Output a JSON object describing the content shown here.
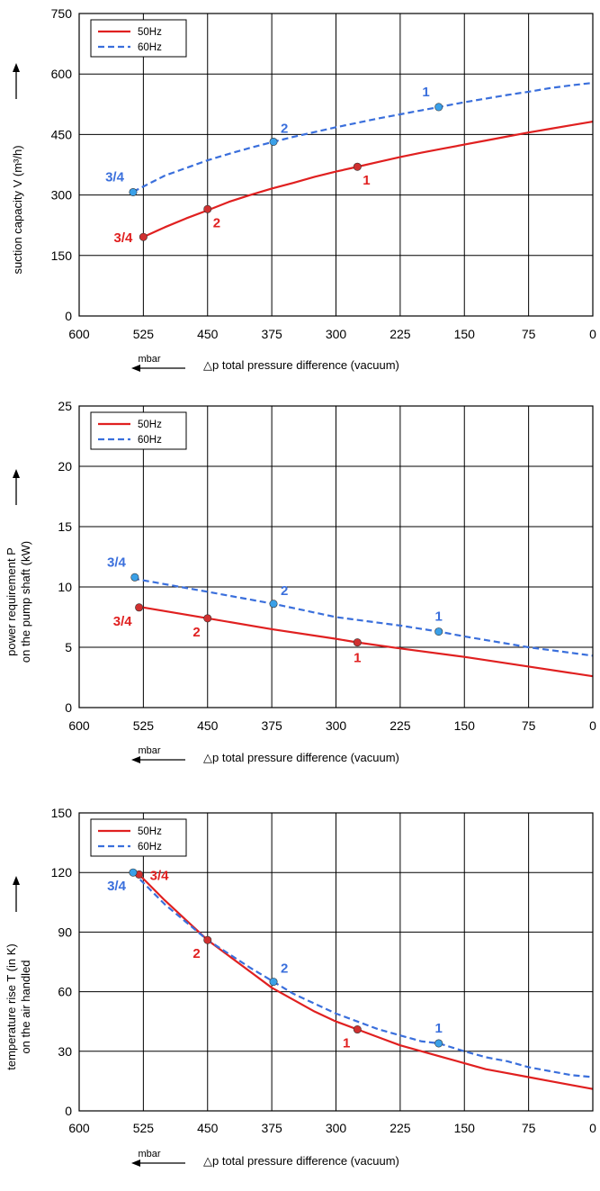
{
  "chart_data": [
    {
      "type": "line",
      "ylabel": "suction capacity V (m³/h)",
      "xlabel": "△p total pressure difference (vacuum)",
      "x_unit": "mbar",
      "xlim": [
        600,
        0
      ],
      "ylim": [
        0,
        750
      ],
      "x_ticks": [
        600,
        525,
        450,
        375,
        300,
        225,
        150,
        75,
        0
      ],
      "y_ticks": [
        0,
        150,
        300,
        450,
        600,
        750
      ],
      "grid": true,
      "legend_position": "top-left",
      "series": [
        {
          "name": "50Hz",
          "color": "#e02020",
          "dash": false,
          "x": [
            525,
            500,
            475,
            450,
            425,
            400,
            375,
            350,
            325,
            300,
            275,
            250,
            225,
            200,
            175,
            150,
            125,
            100,
            75,
            50,
            25,
            0
          ],
          "y": [
            196,
            220,
            242,
            262,
            283,
            300,
            316,
            330,
            345,
            358,
            370,
            382,
            394,
            405,
            415,
            425,
            435,
            445,
            455,
            464,
            473,
            482
          ]
        },
        {
          "name": "60Hz",
          "color": "#3a6fdc",
          "dash": true,
          "x": [
            537,
            500,
            475,
            450,
            425,
            400,
            373,
            350,
            325,
            300,
            275,
            250,
            225,
            200,
            180,
            150,
            125,
            100,
            75,
            50,
            25,
            0
          ],
          "y": [
            308,
            348,
            367,
            386,
            402,
            417,
            432,
            444,
            456,
            468,
            479,
            490,
            500,
            510,
            518,
            530,
            539,
            548,
            556,
            565,
            572,
            578
          ]
        }
      ],
      "points": [
        {
          "series": "50Hz",
          "label": "3/4",
          "x": 525,
          "y": 196,
          "label_pos": "left"
        },
        {
          "series": "50Hz",
          "label": "2",
          "x": 450,
          "y": 265,
          "label_pos": "below-right"
        },
        {
          "series": "50Hz",
          "label": "1",
          "x": 275,
          "y": 370,
          "label_pos": "below-right"
        },
        {
          "series": "60Hz",
          "label": "3/4",
          "x": 537,
          "y": 307,
          "label_pos": "above-left"
        },
        {
          "series": "60Hz",
          "label": "2",
          "x": 373,
          "y": 432,
          "label_pos": "above-right"
        },
        {
          "series": "60Hz",
          "label": "1",
          "x": 180,
          "y": 518,
          "label_pos": "above-left"
        }
      ]
    },
    {
      "type": "line",
      "ylabel": "power requirement P",
      "ylabel2": "on the pump shaft (kW)",
      "xlabel": "△p total pressure difference (vacuum)",
      "x_unit": "mbar",
      "xlim": [
        600,
        0
      ],
      "ylim": [
        0,
        25
      ],
      "x_ticks": [
        600,
        525,
        450,
        375,
        300,
        225,
        150,
        75,
        0
      ],
      "y_ticks": [
        0,
        5,
        10,
        15,
        20,
        25
      ],
      "grid": true,
      "legend_position": "top-left",
      "series": [
        {
          "name": "50Hz",
          "color": "#e02020",
          "dash": false,
          "x": [
            525,
            450,
            375,
            300,
            275,
            225,
            150,
            75,
            0
          ],
          "y": [
            8.3,
            7.4,
            6.5,
            5.7,
            5.4,
            4.9,
            4.2,
            3.4,
            2.6
          ]
        },
        {
          "name": "60Hz",
          "color": "#3a6fdc",
          "dash": true,
          "x": [
            537,
            450,
            373,
            300,
            225,
            180,
            150,
            75,
            0
          ],
          "y": [
            10.7,
            9.6,
            8.6,
            7.5,
            6.8,
            6.3,
            5.9,
            5.0,
            4.3
          ]
        }
      ],
      "points": [
        {
          "series": "50Hz",
          "label": "3/4",
          "x": 530,
          "y": 8.3,
          "label_pos": "below-left"
        },
        {
          "series": "50Hz",
          "label": "2",
          "x": 450,
          "y": 7.4,
          "label_pos": "below-left"
        },
        {
          "series": "50Hz",
          "label": "1",
          "x": 275,
          "y": 5.4,
          "label_pos": "below"
        },
        {
          "series": "60Hz",
          "label": "3/4",
          "x": 535,
          "y": 10.8,
          "label_pos": "above-left"
        },
        {
          "series": "60Hz",
          "label": "2",
          "x": 373,
          "y": 8.6,
          "label_pos": "above-right"
        },
        {
          "series": "60Hz",
          "label": "1",
          "x": 180,
          "y": 6.3,
          "label_pos": "above"
        }
      ]
    },
    {
      "type": "line",
      "ylabel": "temperature rise T (in K)",
      "ylabel2": "on the air handled",
      "xlabel": "△p total pressure difference (vacuum)",
      "x_unit": "mbar",
      "xlim": [
        600,
        0
      ],
      "ylim": [
        0,
        150
      ],
      "x_ticks": [
        600,
        525,
        450,
        375,
        300,
        225,
        150,
        75,
        0
      ],
      "y_ticks": [
        0,
        30,
        60,
        90,
        120,
        150
      ],
      "grid": true,
      "legend_position": "top-left",
      "series": [
        {
          "name": "50Hz",
          "color": "#e02020",
          "dash": false,
          "x": [
            530,
            500,
            475,
            450,
            425,
            400,
            375,
            350,
            325,
            300,
            275,
            250,
            225,
            200,
            175,
            150,
            125,
            100,
            75,
            50,
            25,
            0
          ],
          "y": [
            119,
            106,
            96,
            86,
            78,
            70,
            62,
            56,
            50,
            45,
            41,
            37,
            33,
            30,
            27,
            24,
            21,
            19,
            17,
            15,
            13,
            11
          ]
        },
        {
          "name": "60Hz",
          "color": "#3a6fdc",
          "dash": true,
          "x": [
            537,
            500,
            475,
            450,
            425,
            400,
            373,
            350,
            325,
            300,
            275,
            250,
            225,
            200,
            180,
            150,
            125,
            100,
            75,
            50,
            25,
            0
          ],
          "y": [
            120,
            104,
            95,
            86,
            79,
            72,
            65,
            59,
            54,
            49,
            45,
            41,
            38,
            35,
            34,
            30,
            27,
            25,
            22,
            20,
            18,
            17
          ]
        }
      ],
      "points": [
        {
          "series": "50Hz",
          "label": "3/4",
          "x": 530,
          "y": 119,
          "label_pos": "right"
        },
        {
          "series": "50Hz",
          "label": "2",
          "x": 450,
          "y": 86,
          "label_pos": "below-left"
        },
        {
          "series": "50Hz",
          "label": "1",
          "x": 275,
          "y": 41,
          "label_pos": "below-left"
        },
        {
          "series": "60Hz",
          "label": "3/4",
          "x": 537,
          "y": 120,
          "label_pos": "below-left"
        },
        {
          "series": "60Hz",
          "label": "2",
          "x": 373,
          "y": 65,
          "label_pos": "above-right"
        },
        {
          "series": "60Hz",
          "label": "1",
          "x": 180,
          "y": 34,
          "label_pos": "above"
        }
      ]
    }
  ]
}
